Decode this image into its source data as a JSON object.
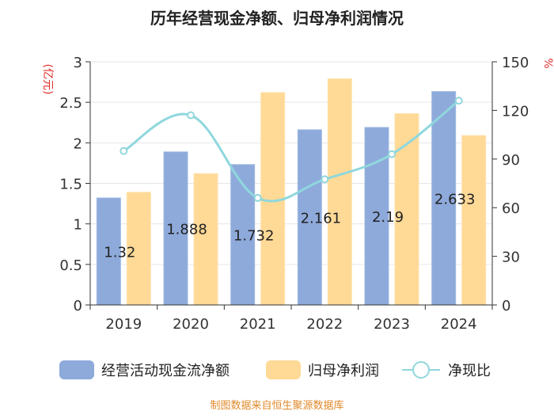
{
  "chart_data": {
    "type": "bar",
    "title": "历年经营现金净额、归母净利润情况",
    "categories": [
      "2019",
      "2020",
      "2021",
      "2022",
      "2023",
      "2024"
    ],
    "y_left": {
      "label": "(亿元)",
      "ylim": [
        0,
        3
      ],
      "ticks": [
        "0",
        "0.5",
        "1",
        "1.5",
        "2",
        "2.5",
        "3"
      ]
    },
    "y_right": {
      "label": "%",
      "ylim": [
        0,
        150
      ],
      "ticks": [
        "0",
        "30",
        "60",
        "90",
        "120",
        "150"
      ]
    },
    "series": [
      {
        "name": "经营活动现金流净额",
        "kind": "bar",
        "axis": "left",
        "color": "#8eaadb",
        "values": [
          1.32,
          1.888,
          1.732,
          2.161,
          2.19,
          2.633
        ],
        "labels": [
          "1.32",
          "1.888",
          "1.732",
          "2.161",
          "2.19",
          "2.633"
        ]
      },
      {
        "name": "归母净利润",
        "kind": "bar",
        "axis": "left",
        "color": "#ffd996",
        "values": [
          1.39,
          1.62,
          2.62,
          2.79,
          2.36,
          2.09
        ]
      },
      {
        "name": "净现比",
        "kind": "line",
        "axis": "right",
        "color": "#8fd7dd",
        "values": [
          95,
          117,
          66,
          77.5,
          93,
          126
        ]
      }
    ],
    "grid": true,
    "legend": "bottom",
    "source": "制图数据来自恒生聚源数据库"
  }
}
